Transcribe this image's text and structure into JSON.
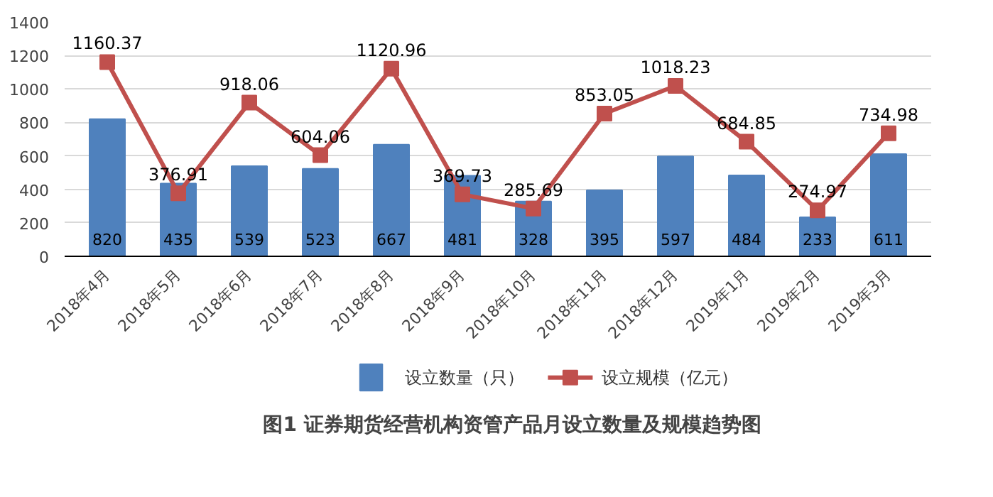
{
  "chart_data": {
    "type": "bar",
    "title": "图1 证券期货经营机构资管产品月设立数量及规模趋势图",
    "categories": [
      "2018年4月",
      "2018年5月",
      "2018年6月",
      "2018年7月",
      "2018年8月",
      "2018年9月",
      "2018年10月",
      "2018年11月",
      "2018年12月",
      "2019年1月",
      "2019年2月",
      "2019年3月"
    ],
    "series": [
      {
        "name": "设立数量（只）",
        "type": "bar",
        "color": "#4f81bd",
        "values": [
          820,
          435,
          539,
          523,
          667,
          481,
          328,
          395,
          597,
          484,
          233,
          611
        ]
      },
      {
        "name": "设立规模（亿元）",
        "type": "line",
        "color": "#c0504d",
        "marker": "square",
        "values": [
          1160.37,
          376.91,
          918.06,
          604.06,
          1120.96,
          369.73,
          285.69,
          853.05,
          1018.23,
          684.85,
          274.97,
          734.98
        ]
      }
    ],
    "ylim": [
      0,
      1400
    ],
    "yticks": [
      0,
      200,
      400,
      600,
      800,
      1000,
      1200,
      1400
    ],
    "grid": "y",
    "legend": "bottom",
    "data_labels": true
  }
}
